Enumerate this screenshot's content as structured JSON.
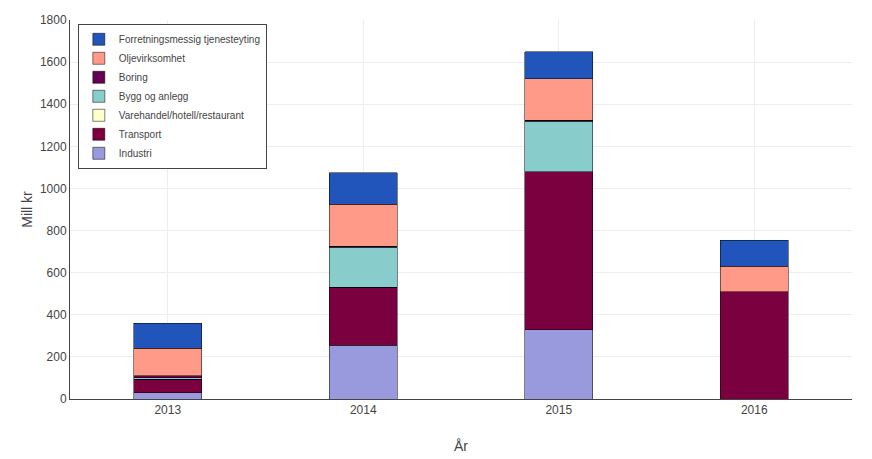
{
  "chart_data": {
    "type": "bar",
    "stacked": true,
    "xlabel": "År",
    "ylabel": "Mill kr",
    "categories": [
      "2013",
      "2014",
      "2015",
      "2016"
    ],
    "series": [
      {
        "name": "Industri",
        "color": "#9999DD",
        "values": [
          30,
          255,
          330,
          0
        ]
      },
      {
        "name": "Transport",
        "color": "#7B0040",
        "values": [
          65,
          275,
          750,
          510
        ]
      },
      {
        "name": "Varehandel/hotell/restaurant",
        "color": "#FFFFCC",
        "values": [
          0,
          0,
          0,
          0
        ]
      },
      {
        "name": "Bygg og anlegg",
        "color": "#88CCCC",
        "values": [
          5,
          190,
          240,
          0
        ]
      },
      {
        "name": "Boring",
        "color": "#660055",
        "values": [
          10,
          5,
          5,
          0
        ]
      },
      {
        "name": "Oljevirksomhet",
        "color": "#FF9988",
        "values": [
          130,
          200,
          195,
          120
        ]
      },
      {
        "name": "Forretningsmessig tjenesteyting",
        "color": "#2255BB",
        "values": [
          120,
          150,
          130,
          125
        ]
      }
    ],
    "ylim": [
      0,
      1800
    ],
    "yticks": [
      0,
      200,
      400,
      600,
      800,
      1000,
      1200,
      1400,
      1600,
      1800
    ],
    "grid": true,
    "legend": "upper left"
  }
}
